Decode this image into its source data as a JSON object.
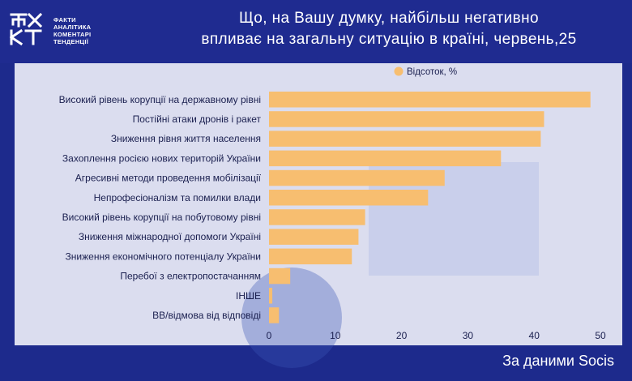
{
  "logo": {
    "mark_text": "ФАКТ",
    "lines": [
      "ФАКТИ",
      "АНАЛІТИКА",
      "КОМЕНТАРІ",
      "ТЕНДЕНЦІЇ"
    ]
  },
  "title": {
    "line1": "Що, на Вашу думку, найбільш негативно",
    "line2": "впливає на загальну ситуацію  в країні, червень,25"
  },
  "source": "За даними Socis",
  "colors": {
    "background": "#1d2a8c",
    "bar": "#f7be70",
    "text_dark": "#1a1f4f",
    "plot_bg": "#e9ebf6"
  },
  "chart_data": {
    "type": "bar",
    "orientation": "horizontal",
    "categories": [
      "Високий рівень корупції на державному рівні",
      "Постійні атаки дронів і ракет",
      "Зниження рівня життя населення",
      "Захоплення росією нових територій України",
      "Агресивні методи проведення мобілізації",
      "Непрофесіоналізм та помилки влади",
      "Високий рівень корупції на побутовому рівні",
      "Зниження міжнародної допомоги Україні",
      "Зниження економічного потенціалу України",
      "Перебої з електропостачанням",
      "ІНШЕ",
      "ВВ/відмова від відповіді"
    ],
    "series": [
      {
        "name": "Відсоток, %",
        "values": [
          48.5,
          41.5,
          41,
          35,
          26.5,
          24,
          14.5,
          13.5,
          12.5,
          3.2,
          0.5,
          1.5
        ]
      }
    ],
    "xlim": [
      0,
      50
    ],
    "ticks": [
      "0",
      "10",
      "20",
      "30",
      "40",
      "50"
    ],
    "legend_position": "top",
    "grid": false
  }
}
